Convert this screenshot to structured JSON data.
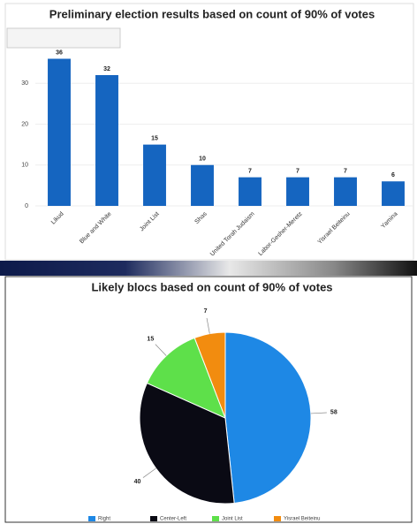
{
  "chart_data": [
    {
      "type": "bar",
      "title": "Preliminary election results based on count of 90% of votes",
      "categories": [
        "Likud",
        "Blue and White",
        "Joint List",
        "Shas",
        "United Torah Judaism",
        "Labor-Gesher-Meretz",
        "Yisrael Beiteinu",
        "Yamina"
      ],
      "values": [
        36,
        32,
        15,
        10,
        7,
        7,
        7,
        6
      ],
      "color": "#1565c0",
      "ylim": [
        0,
        40
      ],
      "yticks": [
        0,
        10,
        20,
        30
      ],
      "grid": true
    },
    {
      "type": "pie",
      "title": "Likely blocs based on count of 90% of votes",
      "categories": [
        "Right",
        "Center-Left",
        "Joint List",
        "Yisrael Beiteinu"
      ],
      "values": [
        58,
        40,
        15,
        7
      ],
      "colors": [
        "#1e88e5",
        "#0a0a14",
        "#5ee04a",
        "#f28c0f"
      ]
    }
  ]
}
